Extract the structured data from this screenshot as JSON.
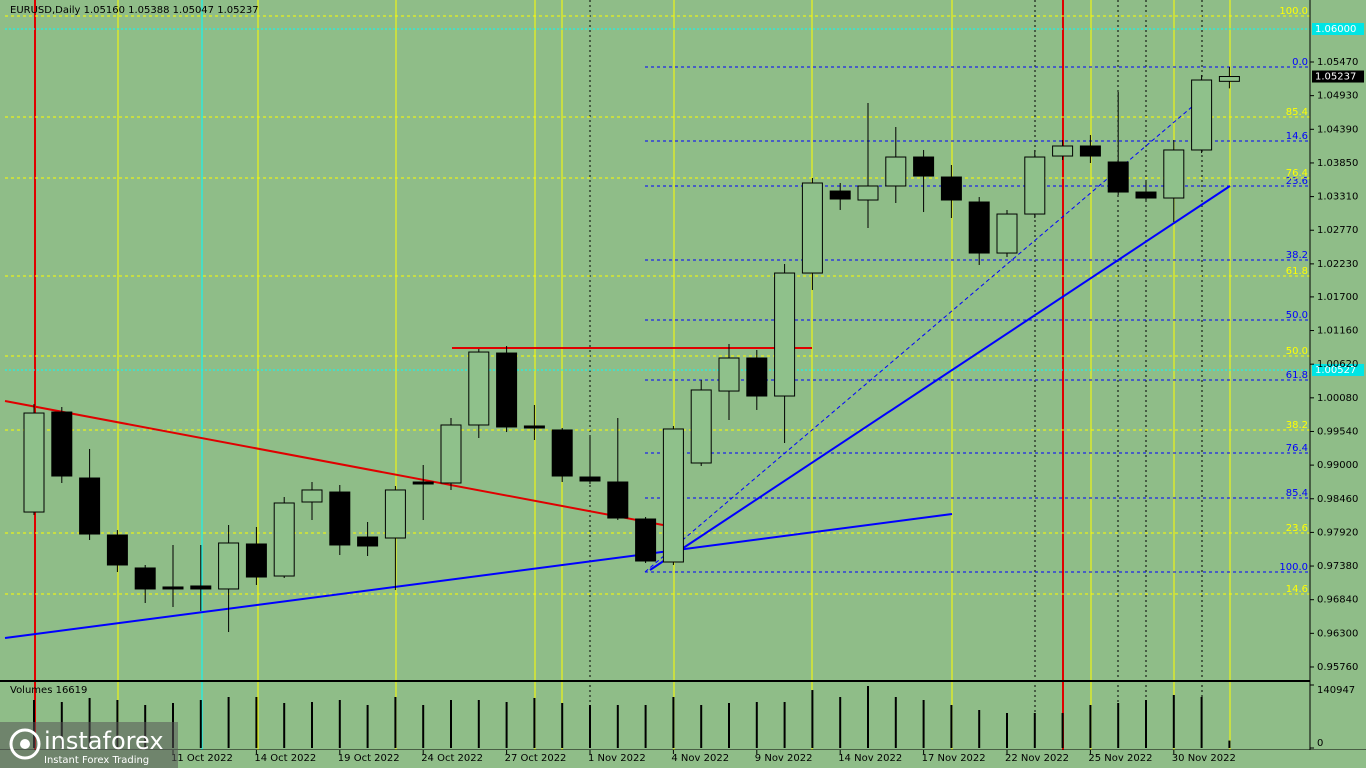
{
  "chart_data": {
    "type": "candlestick",
    "header": "EURUSD,Daily  1.05160 1.05388 1.05047 1.05237",
    "categories": [
      null,
      null,
      null,
      null,
      null,
      "11 Oct 2022",
      null,
      null,
      "14 Oct 2022",
      null,
      null,
      "19 Oct 2022",
      null,
      null,
      "24 Oct 2022",
      null,
      null,
      "27 Oct 2022",
      null,
      null,
      "1 Nov 2022",
      null,
      null,
      "4 Nov 2022",
      null,
      null,
      "9 Nov 2022",
      null,
      null,
      "14 Nov 2022",
      null,
      null,
      "17 Nov 2022",
      null,
      null,
      "22 Nov 2022",
      null,
      null,
      "25 Nov 2022",
      null,
      null,
      "30 Nov 2022",
      null,
      null
    ],
    "open": [
      0.98247,
      0.99852,
      0.98793,
      0.97878,
      0.97349,
      0.97044,
      0.9706,
      0.97012,
      0.97734,
      0.9722,
      0.98408,
      0.98568,
      0.97846,
      0.9783,
      0.98729,
      0.98713,
      0.99644,
      1.00799,
      0.99628,
      0.99564,
      0.98809,
      0.98729,
      0.98135,
      0.97445,
      0.99034,
      1.00189,
      1.00719,
      1.00109,
      1.02083,
      1.03399,
      1.03255,
      1.0348,
      1.03945,
      1.03624,
      1.03223,
      1.02404,
      1.0303,
      1.03961,
      1.04122,
      1.03865,
      1.03383,
      1.03287,
      1.04058,
      1.0516
    ],
    "high": [
      0.99981,
      0.99933,
      0.99259,
      0.97958,
      0.97397,
      0.97718,
      0.97718,
      0.98039,
      0.98007,
      0.98488,
      0.98729,
      0.98681,
      0.98087,
      0.98665,
      0.99002,
      0.99756,
      1.00864,
      1.00912,
      0.99965,
      0.99596,
      0.99483,
      0.99756,
      0.98167,
      0.99628,
      1.00366,
      1.00944,
      1.00848,
      1.02228,
      1.03608,
      1.03528,
      1.04812,
      1.04427,
      1.04058,
      1.03817,
      1.03303,
      1.03095,
      1.04058,
      1.04218,
      1.04298,
      1.04988,
      1.03576,
      1.04218,
      1.05261,
      1.05388
    ],
    "low": [
      0.98199,
      0.98713,
      0.97798,
      0.97284,
      0.96787,
      0.96723,
      0.96658,
      0.96321,
      0.97076,
      0.97188,
      0.98119,
      0.97557,
      0.97541,
      0.96996,
      0.98119,
      0.98601,
      0.99435,
      0.99531,
      0.99403,
      0.98729,
      0.98697,
      0.98119,
      0.97429,
      0.97397,
      0.98986,
      0.99724,
      0.99885,
      0.99355,
      1.01811,
      1.03095,
      1.02806,
      1.03207,
      1.03062,
      1.02966,
      1.02212,
      1.0234,
      1.02966,
      1.03897,
      1.03849,
      1.03335,
      1.03255,
      1.02902,
      1.04009,
      1.05047
    ],
    "close": [
      0.99836,
      0.98825,
      0.97894,
      0.97397,
      0.97012,
      0.97012,
      0.97012,
      0.9775,
      0.97204,
      0.98392,
      0.98601,
      0.97718,
      0.97702,
      0.98601,
      0.98697,
      0.99644,
      1.00815,
      0.99612,
      0.99596,
      0.98825,
      0.98745,
      0.98151,
      0.97461,
      0.9958,
      1.00206,
      1.00719,
      1.00109,
      1.02083,
      1.03528,
      1.03271,
      1.0348,
      1.03945,
      1.0364,
      1.03255,
      1.02404,
      1.0303,
      1.03945,
      1.04122,
      1.03961,
      1.03383,
      1.03287,
      1.04058,
      1.05181,
      1.05237
    ],
    "up_color": "#8fc18b",
    "down_color": "#000000",
    "ylim": [
      0.95551,
      1.06385
    ],
    "yticks": [
      {
        "value": 1.0547,
        "label": "1.05470"
      },
      {
        "value": 1.0493,
        "label": "1.04930"
      },
      {
        "value": 1.0439,
        "label": "1.04390"
      },
      {
        "value": 1.0385,
        "label": "1.03850"
      },
      {
        "value": 1.0331,
        "label": "1.03310"
      },
      {
        "value": 1.0277,
        "label": "1.02770"
      },
      {
        "value": 1.0223,
        "label": "1.02230"
      },
      {
        "value": 1.017,
        "label": "1.01700"
      },
      {
        "value": 1.0116,
        "label": "1.01160"
      },
      {
        "value": 1.0062,
        "label": "1.00620"
      },
      {
        "value": 1.0008,
        "label": "1.00080"
      },
      {
        "value": 0.9954,
        "label": "0.99540"
      },
      {
        "value": 0.99,
        "label": "0.99000"
      },
      {
        "value": 0.9846,
        "label": "0.98460"
      },
      {
        "value": 0.9792,
        "label": "0.97920"
      },
      {
        "value": 0.9738,
        "label": "0.97380"
      },
      {
        "value": 0.9684,
        "label": "0.96840"
      },
      {
        "value": 0.963,
        "label": "0.96300"
      },
      {
        "value": 0.9576,
        "label": "0.95760"
      }
    ],
    "current_price": {
      "value": 1.05237,
      "label": "1.05237"
    },
    "price_lines": [
      {
        "value": 1.06,
        "label": "1.06000"
      },
      {
        "value": 1.00527,
        "label": "1.00527"
      }
    ],
    "fib_levels": [
      {
        "label": "0.0",
        "price": 1.0539,
        "color": "#0000ff"
      },
      {
        "label": "14.6",
        "price": 1.04202,
        "color": "#0000ff"
      },
      {
        "label": "23.6",
        "price": 1.0348,
        "color": "#0000ff"
      },
      {
        "label": "38.2",
        "price": 1.02292,
        "color": "#0000ff"
      },
      {
        "label": "50.0",
        "price": 1.01329,
        "color": "#0000ff"
      },
      {
        "label": "61.8",
        "price": 1.00366,
        "color": "#0000ff"
      },
      {
        "label": "76.4",
        "price": 0.99194,
        "color": "#0000ff"
      },
      {
        "label": "85.4",
        "price": 0.98472,
        "color": "#0000ff"
      },
      {
        "label": "100.0",
        "price": 0.97284,
        "color": "#0000ff"
      },
      {
        "label": "100.0",
        "price": 1.06208,
        "color": "#ffff00"
      },
      {
        "label": "85.4",
        "price": 1.04587,
        "color": "#ffff00"
      },
      {
        "label": "76.4",
        "price": 1.03608,
        "color": "#ffff00"
      },
      {
        "label": "61.8",
        "price": 1.02035,
        "color": "#ffff00"
      },
      {
        "label": "50.0",
        "price": 1.00751,
        "color": "#ffff00"
      },
      {
        "label": "38.2",
        "price": 0.99564,
        "color": "#ffff00"
      },
      {
        "label": "23.6",
        "price": 0.9791,
        "color": "#ffff00"
      },
      {
        "label": "14.6",
        "price": 0.96931,
        "color": "#ffff00"
      }
    ],
    "volume": {
      "label": "Volumes 16619",
      "values": [
        107400,
        102900,
        111900,
        107400,
        96200,
        100700,
        107400,
        114100,
        114100,
        100700,
        102900,
        107400,
        96200,
        114100,
        96200,
        107400,
        107400,
        102900,
        111900,
        100700,
        96200,
        96200,
        96200,
        114100,
        96200,
        100700,
        102900,
        102900,
        129700,
        114100,
        138700,
        114100,
        107400,
        96200,
        85000,
        78300,
        78300,
        78300,
        96200,
        100700,
        107400,
        118600,
        114100,
        16619
      ],
      "ylim": [
        0,
        140947
      ],
      "yticks": [
        0,
        140947
      ]
    },
    "logo": {
      "name": "instaforex",
      "tagline": "Instant Forex Trading"
    }
  }
}
